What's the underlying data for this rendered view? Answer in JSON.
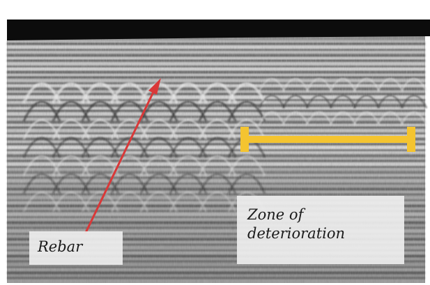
{
  "annotations": {
    "rebar_label": "Rebar",
    "zone_label_line1": "Zone of",
    "zone_label_line2": "deterioration"
  },
  "colors": {
    "arrow": "#d93838",
    "zone_bar": "#f4c430",
    "top_band": "#0c0c0c",
    "label_background": "#eeeeee"
  },
  "icons": {
    "rebar_pointer": "red-arrow-icon",
    "zone_marker": "yellow-range-bar-icon"
  }
}
